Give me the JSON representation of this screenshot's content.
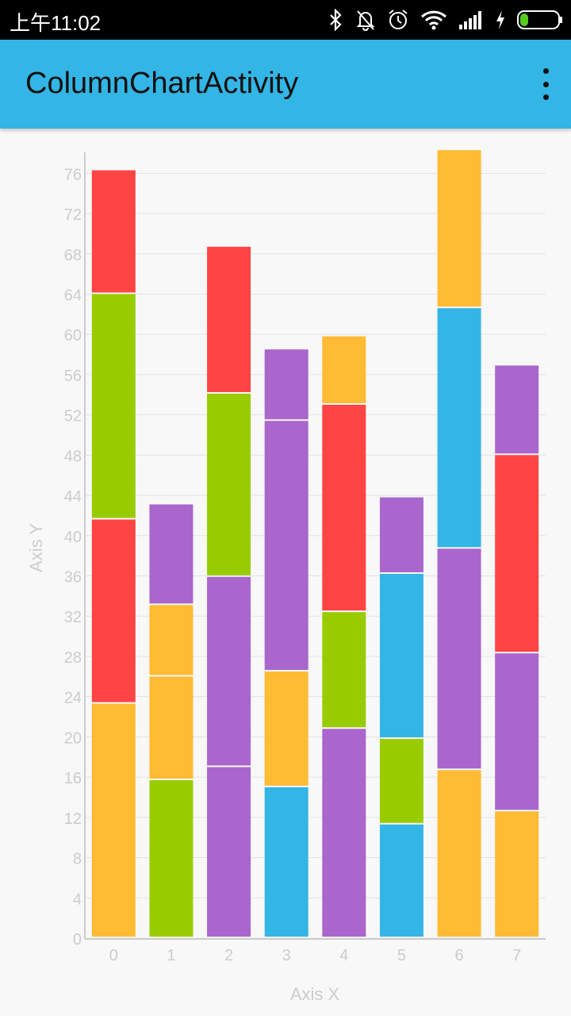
{
  "status_bar": {
    "time": "上午11:02",
    "icons": [
      "bluetooth-icon",
      "notifications-off-icon",
      "alarm-icon",
      "wifi-icon",
      "signal-icon",
      "charging-icon",
      "battery-icon"
    ]
  },
  "app_bar": {
    "title": "ColumnChartActivity",
    "menu_icon": "overflow-menu-icon"
  },
  "colors": {
    "orange": "#ffbb33",
    "green": "#99cc00",
    "red": "#ff4444",
    "purple": "#aa66cc",
    "blue": "#33b5e5",
    "app_bar": "#33b5e5",
    "axis_text": "#cccccc",
    "grid": "#e0e0e0"
  },
  "chart_data": {
    "type": "bar",
    "stacked": true,
    "title": "",
    "xlabel": "Axis X",
    "ylabel": "Axis Y",
    "categories": [
      "0",
      "1",
      "2",
      "3",
      "4",
      "5",
      "6",
      "7"
    ],
    "ylim": [
      0,
      78
    ],
    "yticks": [
      0,
      4,
      8,
      12,
      16,
      20,
      24,
      28,
      32,
      36,
      40,
      44,
      48,
      52,
      56,
      60,
      64,
      68,
      72,
      76
    ],
    "grid": true,
    "legend": "none",
    "stacks": [
      [
        {
          "value": 23.3,
          "color": "#ffbb33"
        },
        {
          "value": 18.3,
          "color": "#ff4444"
        },
        {
          "value": 22.4,
          "color": "#99cc00"
        },
        {
          "value": 12.3,
          "color": "#ff4444"
        }
      ],
      [
        {
          "value": 15.7,
          "color": "#99cc00"
        },
        {
          "value": 10.3,
          "color": "#ffbb33"
        },
        {
          "value": 7.1,
          "color": "#ffbb33"
        },
        {
          "value": 10.0,
          "color": "#aa66cc"
        }
      ],
      [
        {
          "value": 17.0,
          "color": "#aa66cc"
        },
        {
          "value": 18.9,
          "color": "#aa66cc"
        },
        {
          "value": 18.2,
          "color": "#99cc00"
        },
        {
          "value": 14.6,
          "color": "#ff4444"
        }
      ],
      [
        {
          "value": 15.0,
          "color": "#33b5e5"
        },
        {
          "value": 11.5,
          "color": "#ffbb33"
        },
        {
          "value": 24.9,
          "color": "#aa66cc"
        },
        {
          "value": 7.1,
          "color": "#aa66cc"
        }
      ],
      [
        {
          "value": 20.8,
          "color": "#aa66cc"
        },
        {
          "value": 11.6,
          "color": "#99cc00"
        },
        {
          "value": 20.6,
          "color": "#ff4444"
        },
        {
          "value": 6.8,
          "color": "#ffbb33"
        }
      ],
      [
        {
          "value": 11.3,
          "color": "#33b5e5"
        },
        {
          "value": 8.5,
          "color": "#99cc00"
        },
        {
          "value": 16.4,
          "color": "#33b5e5"
        },
        {
          "value": 7.6,
          "color": "#aa66cc"
        }
      ],
      [
        {
          "value": 16.7,
          "color": "#ffbb33"
        },
        {
          "value": 22.0,
          "color": "#aa66cc"
        },
        {
          "value": 23.9,
          "color": "#33b5e5"
        },
        {
          "value": 15.7,
          "color": "#ffbb33"
        }
      ],
      [
        {
          "value": 12.6,
          "color": "#ffbb33"
        },
        {
          "value": 15.7,
          "color": "#aa66cc"
        },
        {
          "value": 19.7,
          "color": "#ff4444"
        },
        {
          "value": 8.9,
          "color": "#aa66cc"
        }
      ]
    ]
  }
}
